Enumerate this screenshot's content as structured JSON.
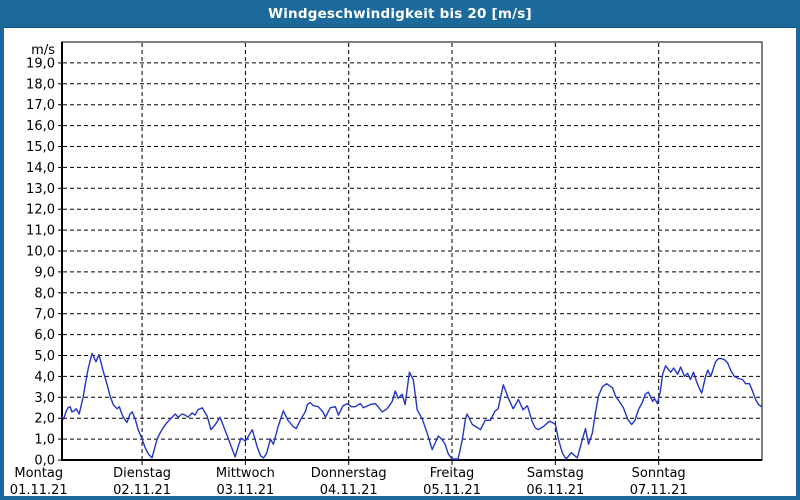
{
  "window": {
    "title": "Windgeschwindigkeit bis 20 [m/s]",
    "titlebar_color": "#1c6a9c",
    "frame_color": "#1c6a9c"
  },
  "chart_data": {
    "type": "line",
    "title": "Windgeschwindigkeit bis 20 [m/s]",
    "y_unit": "m/s",
    "ylim": [
      0,
      20
    ],
    "grid": "dashed-black",
    "legend_position": "none",
    "plot_bg": "#ffffff",
    "line_color": "#2336c3",
    "y_ticks": [
      {
        "value": 0,
        "label": "0,0"
      },
      {
        "value": 1,
        "label": "1,0"
      },
      {
        "value": 2,
        "label": "2,0"
      },
      {
        "value": 3,
        "label": "3,0"
      },
      {
        "value": 4,
        "label": "4,0"
      },
      {
        "value": 5,
        "label": "5,0"
      },
      {
        "value": 6,
        "label": "6,0"
      },
      {
        "value": 7,
        "label": "7,0"
      },
      {
        "value": 8,
        "label": "8,0"
      },
      {
        "value": 9,
        "label": "9,0"
      },
      {
        "value": 10,
        "label": "10,0"
      },
      {
        "value": 11,
        "label": "11,0"
      },
      {
        "value": 12,
        "label": "12,0"
      },
      {
        "value": 13,
        "label": "13,0"
      },
      {
        "value": 14,
        "label": "14,0"
      },
      {
        "value": 15,
        "label": "15,0"
      },
      {
        "value": 16,
        "label": "16,0"
      },
      {
        "value": 17,
        "label": "17,0"
      },
      {
        "value": 18,
        "label": "18,0"
      },
      {
        "value": 19,
        "label": "19,0"
      }
    ],
    "x_unit": "hours since 01.11.21 00:00",
    "xlim_hours": [
      5.4,
      168
    ],
    "x_ticks": [
      {
        "day": "Montag",
        "date": "01.11.21",
        "hour": 0
      },
      {
        "day": "Dienstag",
        "date": "02.11.21",
        "hour": 24
      },
      {
        "day": "Mittwoch",
        "date": "03.11.21",
        "hour": 48
      },
      {
        "day": "Donnerstag",
        "date": "04.11.21",
        "hour": 72
      },
      {
        "day": "Freitag",
        "date": "05.11.21",
        "hour": 96
      },
      {
        "day": "Samstag",
        "date": "06.11.21",
        "hour": 120
      },
      {
        "day": "Sonntag",
        "date": "07.11.21",
        "hour": 144
      }
    ],
    "series": [
      {
        "name": "Windgeschwindigkeit [m/s]",
        "points": [
          [
            5.4,
            2.1
          ],
          [
            5.8,
            1.95
          ],
          [
            6.3,
            2.3
          ],
          [
            6.8,
            2.5
          ],
          [
            7.3,
            2.55
          ],
          [
            7.7,
            2.3
          ],
          [
            8.2,
            2.35
          ],
          [
            8.7,
            2.45
          ],
          [
            9.4,
            2.2
          ],
          [
            10.3,
            3.0
          ],
          [
            10.8,
            3.6
          ],
          [
            11.5,
            4.4
          ],
          [
            12.4,
            5.1
          ],
          [
            13.3,
            4.7
          ],
          [
            14.0,
            5.05
          ],
          [
            14.9,
            4.3
          ],
          [
            15.9,
            3.6
          ],
          [
            16.6,
            3.05
          ],
          [
            17.3,
            2.65
          ],
          [
            18.2,
            2.45
          ],
          [
            18.7,
            2.55
          ],
          [
            19.4,
            2.15
          ],
          [
            20.1,
            1.9
          ],
          [
            20.5,
            1.8
          ],
          [
            21.2,
            2.2
          ],
          [
            21.7,
            2.3
          ],
          [
            22.4,
            1.95
          ],
          [
            23.1,
            1.45
          ],
          [
            24.0,
            1.0
          ],
          [
            24.7,
            0.6
          ],
          [
            25.4,
            0.3
          ],
          [
            26.3,
            0.1
          ],
          [
            27.5,
            1.0
          ],
          [
            28.2,
            1.3
          ],
          [
            28.9,
            1.55
          ],
          [
            29.8,
            1.8
          ],
          [
            31.0,
            2.05
          ],
          [
            31.7,
            2.2
          ],
          [
            32.4,
            2.05
          ],
          [
            33.3,
            2.2
          ],
          [
            34.0,
            2.15
          ],
          [
            34.7,
            2.05
          ],
          [
            35.6,
            2.25
          ],
          [
            36.3,
            2.15
          ],
          [
            37.0,
            2.4
          ],
          [
            38.0,
            2.5
          ],
          [
            39.1,
            2.1
          ],
          [
            40.0,
            1.45
          ],
          [
            41.0,
            1.7
          ],
          [
            42.1,
            2.05
          ],
          [
            43.8,
            1.15
          ],
          [
            45.6,
            0.15
          ],
          [
            46.4,
            0.7
          ],
          [
            47.0,
            1.05
          ],
          [
            48.0,
            0.9
          ],
          [
            49.6,
            1.45
          ],
          [
            50.8,
            0.6
          ],
          [
            51.5,
            0.2
          ],
          [
            52.2,
            0.1
          ],
          [
            52.9,
            0.3
          ],
          [
            53.8,
            1.0
          ],
          [
            54.5,
            0.75
          ],
          [
            55.6,
            1.6
          ],
          [
            56.8,
            2.35
          ],
          [
            57.9,
            1.9
          ],
          [
            59.1,
            1.6
          ],
          [
            59.8,
            1.5
          ],
          [
            61.0,
            2.0
          ],
          [
            61.9,
            2.3
          ],
          [
            62.4,
            2.65
          ],
          [
            63.0,
            2.75
          ],
          [
            63.8,
            2.6
          ],
          [
            64.9,
            2.55
          ],
          [
            66.0,
            2.3
          ],
          [
            66.6,
            2.05
          ],
          [
            67.7,
            2.5
          ],
          [
            68.9,
            2.55
          ],
          [
            69.6,
            2.15
          ],
          [
            70.7,
            2.6
          ],
          [
            71.7,
            2.7
          ],
          [
            72.6,
            2.55
          ],
          [
            73.5,
            2.55
          ],
          [
            74.7,
            2.7
          ],
          [
            75.4,
            2.5
          ],
          [
            77.0,
            2.65
          ],
          [
            78.2,
            2.7
          ],
          [
            79.8,
            2.3
          ],
          [
            80.9,
            2.45
          ],
          [
            82.1,
            2.8
          ],
          [
            82.8,
            3.3
          ],
          [
            83.5,
            2.95
          ],
          [
            84.4,
            3.15
          ],
          [
            85.1,
            2.65
          ],
          [
            86.1,
            4.2
          ],
          [
            87.0,
            3.85
          ],
          [
            87.9,
            2.4
          ],
          [
            89.1,
            1.95
          ],
          [
            90.2,
            1.3
          ],
          [
            91.4,
            0.5
          ],
          [
            92.8,
            1.15
          ],
          [
            93.6,
            1.0
          ],
          [
            94.4,
            0.75
          ],
          [
            95.1,
            0.3
          ],
          [
            96.0,
            0.05
          ],
          [
            97.4,
            0.05
          ],
          [
            98.4,
            1.0
          ],
          [
            99.1,
            1.95
          ],
          [
            99.5,
            2.2
          ],
          [
            100.7,
            1.7
          ],
          [
            101.9,
            1.55
          ],
          [
            102.6,
            1.45
          ],
          [
            103.7,
            1.9
          ],
          [
            104.9,
            1.9
          ],
          [
            106.0,
            2.35
          ],
          [
            106.7,
            2.45
          ],
          [
            107.9,
            3.6
          ],
          [
            109.1,
            2.95
          ],
          [
            110.2,
            2.45
          ],
          [
            111.4,
            2.9
          ],
          [
            112.5,
            2.4
          ],
          [
            113.5,
            2.6
          ],
          [
            114.6,
            1.85
          ],
          [
            115.3,
            1.55
          ],
          [
            116.0,
            1.45
          ],
          [
            117.2,
            1.6
          ],
          [
            118.6,
            1.85
          ],
          [
            119.3,
            1.8
          ],
          [
            120.0,
            1.7
          ],
          [
            120.7,
            1.0
          ],
          [
            121.6,
            0.35
          ],
          [
            122.5,
            0.05
          ],
          [
            123.7,
            0.35
          ],
          [
            125.1,
            0.1
          ],
          [
            126.3,
            1.0
          ],
          [
            127.0,
            1.5
          ],
          [
            127.7,
            0.75
          ],
          [
            128.6,
            1.3
          ],
          [
            129.3,
            2.25
          ],
          [
            130.0,
            3.05
          ],
          [
            130.9,
            3.5
          ],
          [
            131.9,
            3.65
          ],
          [
            133.3,
            3.45
          ],
          [
            134.0,
            3.05
          ],
          [
            134.7,
            2.85
          ],
          [
            135.8,
            2.5
          ],
          [
            136.8,
            1.95
          ],
          [
            137.7,
            1.7
          ],
          [
            138.5,
            1.9
          ],
          [
            139.3,
            2.4
          ],
          [
            140.2,
            2.75
          ],
          [
            140.9,
            3.15
          ],
          [
            141.6,
            3.25
          ],
          [
            142.6,
            2.8
          ],
          [
            143.0,
            2.95
          ],
          [
            143.7,
            2.7
          ],
          [
            144.4,
            3.3
          ],
          [
            144.9,
            4.1
          ],
          [
            145.6,
            4.5
          ],
          [
            146.8,
            4.2
          ],
          [
            147.5,
            4.4
          ],
          [
            148.4,
            4.1
          ],
          [
            149.1,
            4.45
          ],
          [
            150.0,
            4.0
          ],
          [
            150.7,
            4.15
          ],
          [
            151.4,
            3.85
          ],
          [
            152.1,
            4.2
          ],
          [
            152.8,
            3.75
          ],
          [
            153.5,
            3.4
          ],
          [
            154.0,
            3.2
          ],
          [
            154.9,
            4.0
          ],
          [
            155.4,
            4.3
          ],
          [
            156.1,
            4.0
          ],
          [
            157.2,
            4.7
          ],
          [
            157.9,
            4.85
          ],
          [
            158.6,
            4.85
          ],
          [
            159.3,
            4.8
          ],
          [
            160.0,
            4.65
          ],
          [
            160.7,
            4.3
          ],
          [
            161.6,
            4.0
          ],
          [
            162.5,
            3.9
          ],
          [
            163.5,
            3.85
          ],
          [
            164.2,
            3.65
          ],
          [
            165.1,
            3.65
          ],
          [
            165.8,
            3.3
          ],
          [
            166.5,
            2.9
          ],
          [
            167.2,
            2.65
          ],
          [
            167.9,
            2.55
          ]
        ]
      }
    ]
  }
}
